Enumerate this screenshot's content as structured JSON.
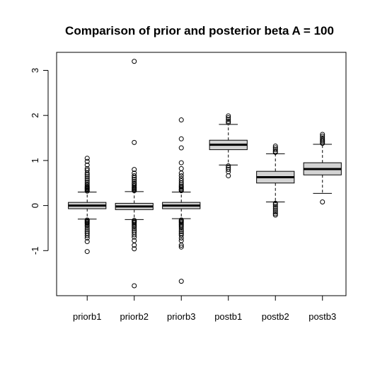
{
  "chart_data": {
    "type": "box",
    "title": "Comparison of prior and posterior beta A = 100",
    "xlabel": "",
    "ylabel": "",
    "ylim": [
      -2,
      3.4
    ],
    "yticks": [
      -1,
      0,
      1,
      2,
      3
    ],
    "ytick_labels": [
      "-1",
      "0",
      "1",
      "2",
      "3"
    ],
    "grid": false,
    "box_fill": "#d3d3d3",
    "categories": [
      "priorb1",
      "priorb2",
      "priorb3",
      "postb1",
      "postb2",
      "postb3"
    ],
    "boxes": [
      {
        "name": "priorb1",
        "q1": -0.07,
        "median": 0.0,
        "q3": 0.07,
        "whisker_low": -0.3,
        "whisker_high": 0.3,
        "outliers": [
          1.05,
          0.98,
          0.9,
          0.82,
          0.78,
          0.72,
          0.68,
          0.64,
          0.6,
          0.56,
          0.52,
          0.48,
          0.45,
          0.42,
          0.4,
          0.38,
          0.36,
          0.34,
          0.32,
          -0.32,
          -0.34,
          -0.36,
          -0.38,
          -0.4,
          -0.43,
          -0.46,
          -0.5,
          -0.54,
          -0.58,
          -0.62,
          -0.67,
          -0.72,
          -0.8,
          -1.02
        ]
      },
      {
        "name": "priorb2",
        "q1": -0.09,
        "median": -0.02,
        "q3": 0.05,
        "whisker_low": -0.31,
        "whisker_high": 0.31,
        "outliers": [
          3.2,
          1.4,
          0.8,
          0.72,
          0.66,
          0.62,
          0.58,
          0.54,
          0.5,
          0.47,
          0.44,
          0.41,
          0.39,
          0.37,
          0.35,
          0.33,
          -0.33,
          -0.35,
          -0.37,
          -0.39,
          -0.42,
          -0.45,
          -0.48,
          -0.52,
          -0.56,
          -0.6,
          -0.65,
          -0.7,
          -0.78,
          -0.88,
          -0.96,
          -1.78
        ]
      },
      {
        "name": "priorb3",
        "q1": -0.07,
        "median": 0.0,
        "q3": 0.07,
        "whisker_low": -0.29,
        "whisker_high": 0.3,
        "outliers": [
          1.9,
          1.48,
          1.28,
          0.95,
          0.82,
          0.72,
          0.66,
          0.6,
          0.55,
          0.5,
          0.46,
          0.43,
          0.4,
          0.37,
          0.35,
          0.33,
          -0.32,
          -0.34,
          -0.36,
          -0.38,
          -0.41,
          -0.44,
          -0.47,
          -0.5,
          -0.54,
          -0.58,
          -0.62,
          -0.66,
          -0.72,
          -0.78,
          -0.88,
          -0.92,
          -1.68
        ]
      },
      {
        "name": "postb1",
        "q1": 1.24,
        "median": 1.35,
        "q3": 1.45,
        "whisker_low": 0.9,
        "whisker_high": 1.8,
        "outliers": [
          1.99,
          1.95,
          1.91,
          1.87,
          1.84,
          0.88,
          0.84,
          0.8,
          0.75,
          0.66
        ]
      },
      {
        "name": "postb2",
        "q1": 0.5,
        "median": 0.63,
        "q3": 0.76,
        "whisker_low": 0.08,
        "whisker_high": 1.15,
        "outliers": [
          1.32,
          1.28,
          1.24,
          1.2,
          1.18,
          0.05,
          0.02,
          -0.02,
          -0.06,
          -0.1,
          -0.14,
          -0.18,
          -0.21
        ]
      },
      {
        "name": "postb3",
        "q1": 0.68,
        "median": 0.81,
        "q3": 0.95,
        "whisker_low": 0.27,
        "whisker_high": 1.36,
        "outliers": [
          1.58,
          1.54,
          1.5,
          1.47,
          1.44,
          1.41,
          1.38,
          0.08
        ]
      }
    ]
  }
}
